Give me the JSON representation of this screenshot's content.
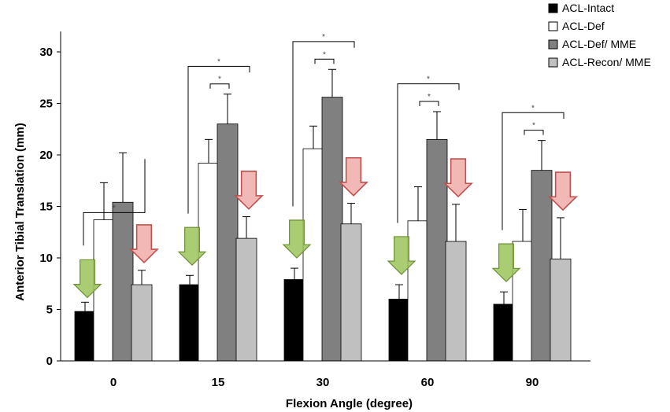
{
  "chart_data": {
    "type": "bar",
    "title": "",
    "xlabel": "Flexion Angle (degree)",
    "ylabel": "Anterior Tibial Translation (mm)",
    "categories": [
      "0",
      "15",
      "30",
      "60",
      "90"
    ],
    "ylim": [
      0,
      30
    ],
    "yticks": [
      "0",
      "5",
      "10",
      "15",
      "20",
      "25",
      "30"
    ],
    "series": [
      {
        "name": "ACL-Intact",
        "color": "#000000",
        "values": [
          4.8,
          7.4,
          7.9,
          6.0,
          5.5
        ],
        "errors": [
          0.9,
          0.9,
          1.1,
          1.4,
          1.2
        ]
      },
      {
        "name": "ACL-Def",
        "color": "#ffffff",
        "values": [
          13.7,
          19.2,
          20.6,
          13.6,
          11.6
        ],
        "errors": [
          3.6,
          2.3,
          2.2,
          3.3,
          3.1
        ]
      },
      {
        "name": "ACL-Def/ MME",
        "color": "#808080",
        "values": [
          15.4,
          23.0,
          25.6,
          21.5,
          18.5
        ],
        "errors": [
          4.8,
          2.9,
          2.7,
          2.7,
          2.9
        ]
      },
      {
        "name": "ACL-Recon/ MME",
        "color": "#c0c0c0",
        "values": [
          7.4,
          11.9,
          13.3,
          11.6,
          9.9
        ],
        "errors": [
          1.4,
          2.1,
          2.0,
          3.6,
          4.0
        ]
      }
    ],
    "significance_marker": "*",
    "legend_position": "top-right",
    "grid": false,
    "arrow_colors": {
      "intact": "#9bc35b",
      "recon": "#c0504d"
    }
  }
}
